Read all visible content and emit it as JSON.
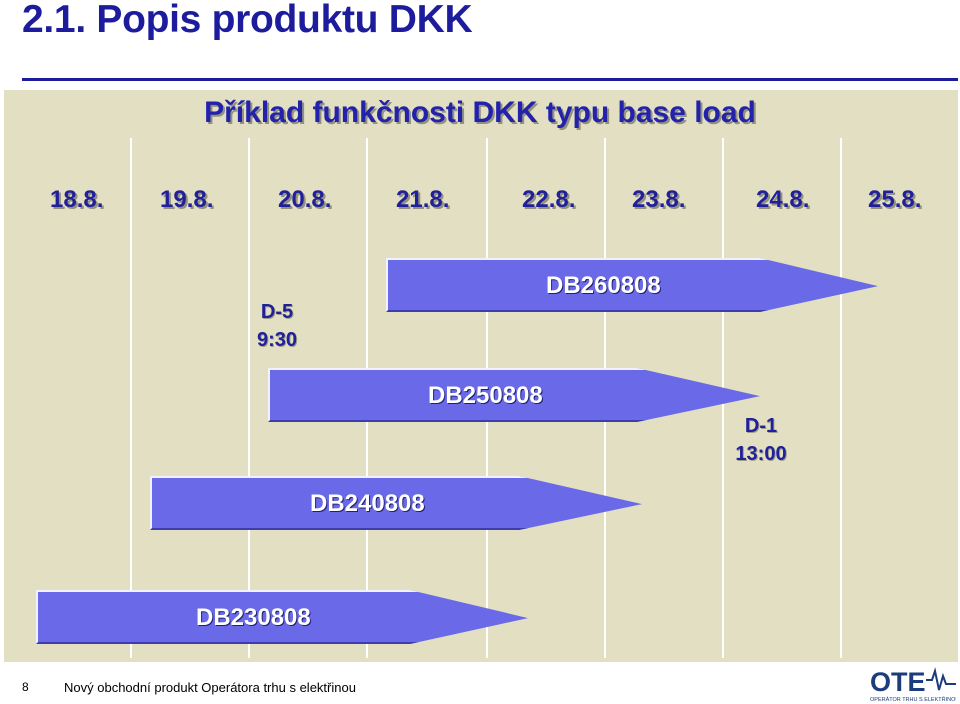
{
  "slide": {
    "title": "2.1. Popis produktu DKK"
  },
  "panel": {
    "title": "Příklad funkčnosti DKK typu base load"
  },
  "dates": [
    "18.8.",
    "19.8.",
    "20.8.",
    "21.8.",
    "22.8.",
    "23.8.",
    "24.8.",
    "25.8."
  ],
  "products": [
    {
      "label": "DB260808"
    },
    {
      "label": "DB250808"
    },
    {
      "label": "DB240808"
    },
    {
      "label": "DB230808"
    }
  ],
  "notes": {
    "d5": {
      "line1": "D-5",
      "line2": "9:30"
    },
    "d1": {
      "line1": "D-1",
      "line2": "13:00"
    }
  },
  "footer": {
    "page_number": "8",
    "text": "Nový obchodní produkt Operátora trhu s elektřinou"
  },
  "logo": {
    "name": "OTE",
    "tagline": "OPERÁTOR TRHU S ELEKTŘINOU"
  },
  "colors": {
    "title": "#1c1c9c",
    "panel_bg": "#e2dfc3",
    "product_fill": "#6a6ae8"
  }
}
